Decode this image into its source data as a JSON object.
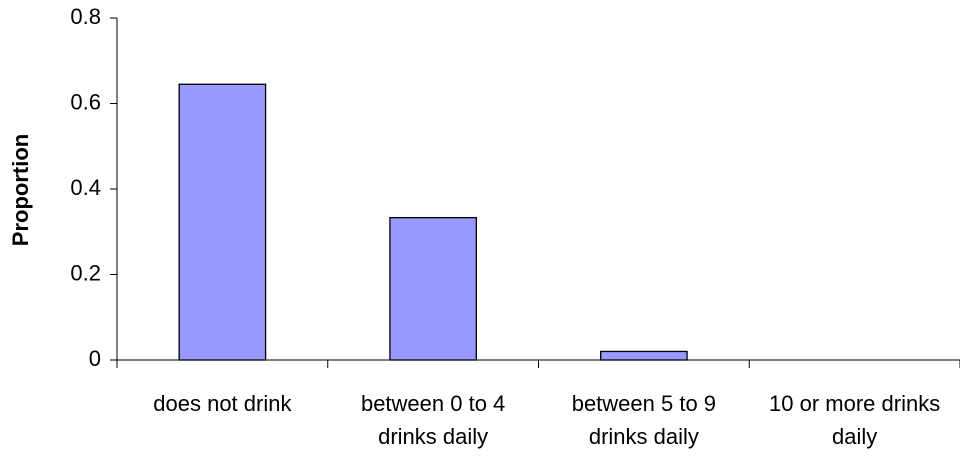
{
  "chart_data": {
    "type": "bar",
    "y_label": "Proportion",
    "categories": [
      "does not drink",
      "between 0 to 4 drinks daily",
      "between 5 to 9 drinks daily",
      "10 or more drinks daily"
    ],
    "values": [
      0.645,
      0.333,
      0.02,
      0
    ],
    "color": "#9999ff",
    "ylim": [
      0,
      0.8
    ],
    "yticks": [
      0,
      0.2,
      0.4,
      0.6,
      0.8
    ],
    "grid": false
  }
}
